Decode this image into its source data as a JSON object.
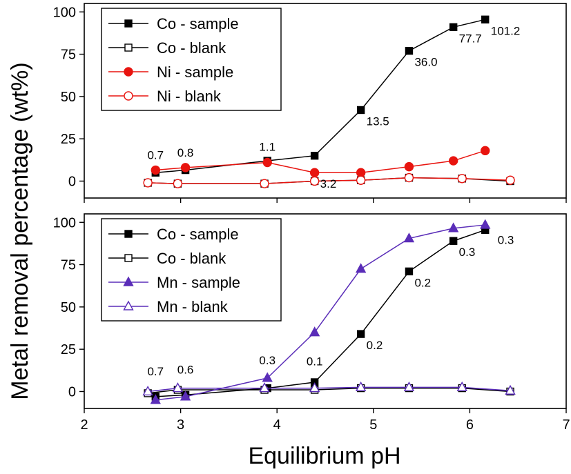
{
  "figure": {
    "xlabel": "Equilibrium pH",
    "ylabel": "Metal removal percentage (wt%)"
  },
  "chart_data": [
    {
      "type": "line",
      "xlim": [
        2,
        7
      ],
      "ylim": [
        -10,
        105
      ],
      "xticks": [
        "2",
        "3",
        "4",
        "5",
        "6",
        "7"
      ],
      "yticks": [
        "0",
        "25",
        "50",
        "75",
        "100"
      ],
      "grid": false,
      "legend_position": "top-left",
      "series": [
        {
          "name": "Co - sample",
          "color": "#000000",
          "marker": "square",
          "filled": true,
          "points": [
            [
              2.74,
              5
            ],
            [
              3.05,
              6.5
            ],
            [
              3.9,
              12
            ],
            [
              4.39,
              15
            ],
            [
              4.87,
              42
            ],
            [
              5.37,
              77
            ],
            [
              5.83,
              91
            ],
            [
              6.16,
              95.5
            ]
          ]
        },
        {
          "name": "Co - blank",
          "color": "#000000",
          "marker": "square",
          "filled": false,
          "points": [
            [
              2.66,
              -1
            ],
            [
              2.97,
              -1.5
            ],
            [
              3.87,
              -1.5
            ],
            [
              4.39,
              0
            ],
            [
              4.87,
              0.5
            ],
            [
              5.37,
              2
            ],
            [
              5.92,
              1.5
            ],
            [
              6.42,
              0
            ]
          ]
        },
        {
          "name": "Ni - sample",
          "color": "#e8140f",
          "marker": "circle",
          "filled": true,
          "points": [
            [
              2.74,
              6.5
            ],
            [
              3.05,
              8
            ],
            [
              3.9,
              11
            ],
            [
              4.39,
              5
            ],
            [
              4.87,
              5
            ],
            [
              5.37,
              8.5
            ],
            [
              5.83,
              12
            ],
            [
              6.16,
              18
            ]
          ]
        },
        {
          "name": "Ni - blank",
          "color": "#e8140f",
          "marker": "circle",
          "filled": false,
          "points": [
            [
              2.66,
              -1
            ],
            [
              2.97,
              -1.5
            ],
            [
              3.87,
              -1.5
            ],
            [
              4.39,
              0
            ],
            [
              4.87,
              0.5
            ],
            [
              5.37,
              2
            ],
            [
              5.92,
              1.5
            ],
            [
              6.42,
              0.5
            ]
          ]
        }
      ],
      "annotations": [
        {
          "text": "0.7",
          "x": 2.74,
          "y": 6.5,
          "pos": "above"
        },
        {
          "text": "0.8",
          "x": 3.05,
          "y": 8,
          "pos": "above"
        },
        {
          "text": "1.1",
          "x": 3.9,
          "y": 11.5,
          "pos": "above"
        },
        {
          "text": "3.2",
          "x": 4.39,
          "y": 5,
          "pos": "below-right"
        },
        {
          "text": "13.5",
          "x": 4.87,
          "y": 42,
          "pos": "below-right"
        },
        {
          "text": "36.0",
          "x": 5.37,
          "y": 77,
          "pos": "below-right"
        },
        {
          "text": "77.7",
          "x": 5.83,
          "y": 91,
          "pos": "below-right"
        },
        {
          "text": "101.2",
          "x": 6.16,
          "y": 95.5,
          "pos": "below-right"
        }
      ]
    },
    {
      "type": "line",
      "xlim": [
        2,
        7
      ],
      "ylim": [
        -10,
        105
      ],
      "xticks": [
        "2",
        "3",
        "4",
        "5",
        "6",
        "7"
      ],
      "yticks": [
        "0",
        "25",
        "50",
        "75",
        "100"
      ],
      "grid": false,
      "legend_position": "top-left",
      "series": [
        {
          "name": "Co - sample",
          "color": "#000000",
          "marker": "square",
          "filled": true,
          "points": [
            [
              2.74,
              -3
            ],
            [
              3.05,
              -2
            ],
            [
              3.9,
              2
            ],
            [
              4.39,
              5.5
            ],
            [
              4.87,
              34
            ],
            [
              5.37,
              71
            ],
            [
              5.83,
              89
            ],
            [
              6.16,
              95.5
            ]
          ]
        },
        {
          "name": "Co - blank",
          "color": "#000000",
          "marker": "square",
          "filled": false,
          "points": [
            [
              2.66,
              -1
            ],
            [
              2.97,
              1
            ],
            [
              3.87,
              1
            ],
            [
              4.39,
              1
            ],
            [
              4.87,
              2
            ],
            [
              5.37,
              2
            ],
            [
              5.92,
              2
            ],
            [
              6.42,
              0
            ]
          ]
        },
        {
          "name": "Mn - sample",
          "color": "#5a2db8",
          "marker": "triangle",
          "filled": true,
          "points": [
            [
              2.74,
              -5
            ],
            [
              3.05,
              -3
            ],
            [
              3.9,
              8
            ],
            [
              4.39,
              35
            ],
            [
              4.87,
              72.5
            ],
            [
              5.37,
              90.5
            ],
            [
              5.83,
              96.5
            ],
            [
              6.16,
              98.5
            ]
          ]
        },
        {
          "name": "Mn - blank",
          "color": "#5a2db8",
          "marker": "triangle",
          "filled": false,
          "points": [
            [
              2.66,
              0
            ],
            [
              2.97,
              2
            ],
            [
              3.87,
              2
            ],
            [
              4.39,
              2
            ],
            [
              4.87,
              2.5
            ],
            [
              5.37,
              2.5
            ],
            [
              5.92,
              2.5
            ],
            [
              6.42,
              0.5
            ]
          ]
        }
      ],
      "annotations": [
        {
          "text": "0.7",
          "x": 2.74,
          "y": 3,
          "pos": "above"
        },
        {
          "text": "0.6",
          "x": 3.05,
          "y": 4,
          "pos": "above"
        },
        {
          "text": "0.3",
          "x": 3.9,
          "y": 9.5,
          "pos": "above"
        },
        {
          "text": "0.1",
          "x": 4.39,
          "y": 9,
          "pos": "above"
        },
        {
          "text": "0.2",
          "x": 4.87,
          "y": 34,
          "pos": "below-right"
        },
        {
          "text": "0.2",
          "x": 5.37,
          "y": 71,
          "pos": "below-right"
        },
        {
          "text": "0.3",
          "x": 5.83,
          "y": 89,
          "pos": "below-right"
        },
        {
          "text": "0.3",
          "x": 6.16,
          "y": 95.5,
          "pos": "right"
        }
      ]
    }
  ]
}
